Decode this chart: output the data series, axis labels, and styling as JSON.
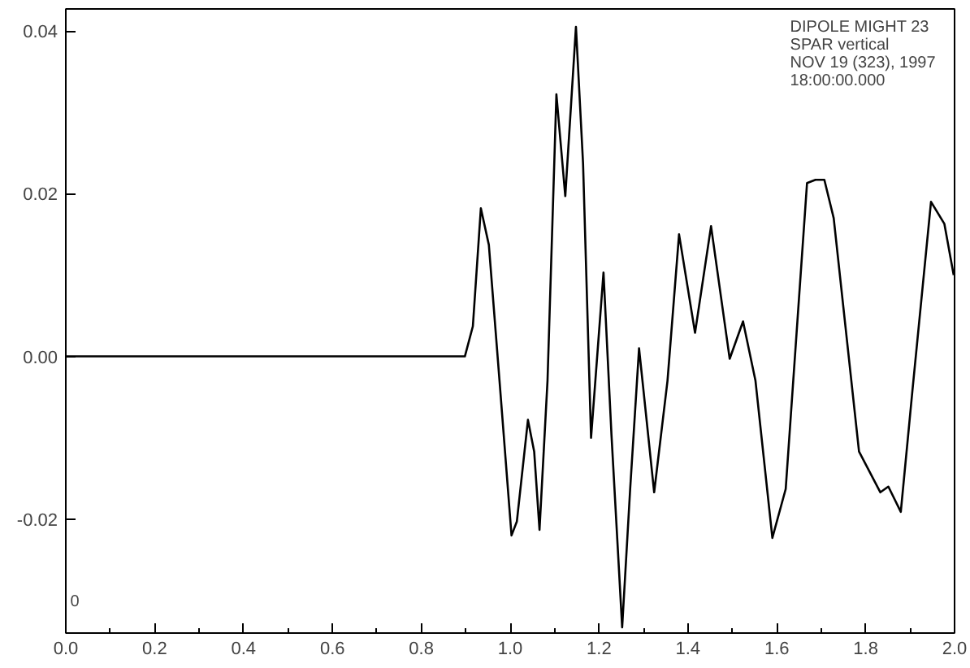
{
  "chart_data": {
    "type": "line",
    "x": [
      0.0,
      0.898,
      0.916,
      0.934,
      0.952,
      0.976,
      1.003,
      1.015,
      1.04,
      1.054,
      1.066,
      1.084,
      1.104,
      1.124,
      1.148,
      1.164,
      1.182,
      1.21,
      1.228,
      1.252,
      1.27,
      1.29,
      1.324,
      1.354,
      1.38,
      1.416,
      1.452,
      1.494,
      1.524,
      1.552,
      1.59,
      1.62,
      1.668,
      1.687,
      1.707,
      1.728,
      1.785,
      1.833,
      1.851,
      1.879,
      1.905,
      1.947,
      1.977,
      1.998
    ],
    "series": [
      {
        "color": "#000000",
        "values": [
          0.0,
          0.0,
          0.0037,
          0.0182,
          0.0137,
          -0.003,
          -0.022,
          -0.0203,
          -0.0078,
          -0.0117,
          -0.0213,
          -0.003,
          0.0322,
          0.0197,
          0.0405,
          0.0237,
          -0.01,
          0.0103,
          -0.0097,
          -0.0333,
          -0.0163,
          0.001,
          -0.0167,
          -0.003,
          0.015,
          0.0029,
          0.016,
          -0.0003,
          0.0043,
          -0.003,
          -0.0223,
          -0.0163,
          0.0213,
          0.0217,
          0.0217,
          0.017,
          -0.0117,
          -0.0167,
          -0.016,
          -0.0191,
          -0.0043,
          0.019,
          0.0163,
          0.01
        ]
      }
    ],
    "xlim": [
      0.0,
      2.0
    ],
    "xticks": [
      {
        "value": 0.0,
        "label": "0.0"
      },
      0.2,
      0.4,
      0.6,
      0.8,
      {
        "value": 1.0,
        "label": "1.0"
      },
      1.2,
      1.4,
      1.6,
      1.8,
      {
        "value": 2.0,
        "label": "2.0"
      }
    ],
    "ylim": [
      -0.034,
      0.0427
    ],
    "yticks": [
      {
        "value": -0.02,
        "label": "-0.02"
      },
      {
        "value": 0.0,
        "label": "0.00"
      },
      {
        "value": 0.02,
        "label": "0.02"
      },
      {
        "value": 0.04,
        "label": "0.04"
      }
    ],
    "annotations": [
      "DIPOLE MIGHT 23\nSPAR   vertical\nNOV 19 (323), 1997\n18:00:00.000",
      "0"
    ],
    "grid": false,
    "marker": "none",
    "line_style": "solid"
  }
}
